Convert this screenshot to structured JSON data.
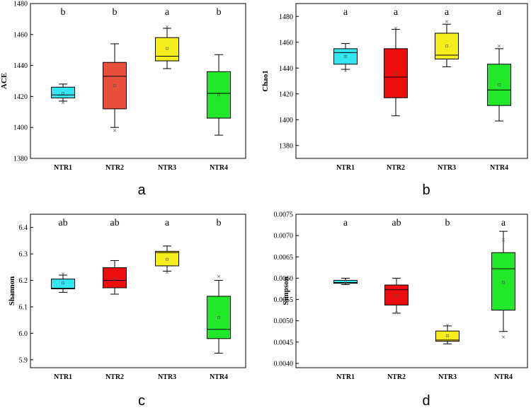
{
  "chart_data": [
    {
      "type": "box",
      "panel_label": "a",
      "ylabel": "ACE",
      "xlabel": "",
      "ylim": [
        1380,
        1480
      ],
      "yticks": [
        "1380",
        "1400",
        "1420",
        "1440",
        "1460",
        "1480"
      ],
      "categories": [
        "NTR1",
        "NTR2",
        "NTR3",
        "NTR4"
      ],
      "colors": [
        "#33e6f2",
        "#e8503c",
        "#f5ee1c",
        "#22e82a"
      ],
      "significance": [
        "b",
        "b",
        "a",
        "b"
      ],
      "boxes": [
        {
          "whisker_low": 1417,
          "q1": 1419,
          "median": 1421,
          "q3": 1426,
          "whisker_high": 1428,
          "mean": 1422,
          "outliers": [
            1416
          ]
        },
        {
          "whisker_low": 1400,
          "q1": 1412,
          "median": 1433,
          "q3": 1442,
          "whisker_high": 1454,
          "mean": 1427,
          "outliers": [
            1398
          ]
        },
        {
          "whisker_low": 1438,
          "q1": 1443,
          "median": 1446,
          "q3": 1458,
          "whisker_high": 1464,
          "mean": 1451,
          "outliers": [
            1465
          ]
        },
        {
          "whisker_low": 1395,
          "q1": 1406,
          "median": 1422,
          "q3": 1436,
          "whisker_high": 1447,
          "mean": 1421,
          "outliers": []
        }
      ]
    },
    {
      "type": "box",
      "panel_label": "b",
      "ylabel": "Chao1",
      "xlabel": "",
      "ylim": [
        1370,
        1490
      ],
      "yticks": [
        "1380",
        "1400",
        "1420",
        "1440",
        "1460",
        "1480"
      ],
      "categories": [
        "NTR1",
        "NTR2",
        "NTR3",
        "NTR4"
      ],
      "colors": [
        "#33e6f2",
        "#ee0d0d",
        "#f5ee1c",
        "#22e82a"
      ],
      "significance": [
        "a",
        "a",
        "a",
        "a"
      ],
      "boxes": [
        {
          "whisker_low": 1439,
          "q1": 1443,
          "median": 1452,
          "q3": 1455,
          "whisker_high": 1459,
          "mean": 1449,
          "outliers": [
            1438
          ]
        },
        {
          "whisker_low": 1403,
          "q1": 1417,
          "median": 1433,
          "q3": 1455,
          "whisker_high": 1470,
          "mean": 1436,
          "outliers": [
            1471
          ]
        },
        {
          "whisker_low": 1441,
          "q1": 1447,
          "median": 1450,
          "q3": 1467,
          "whisker_high": 1474,
          "mean": 1457,
          "outliers": [
            1476
          ]
        },
        {
          "whisker_low": 1399,
          "q1": 1411,
          "median": 1423,
          "q3": 1443,
          "whisker_high": 1455,
          "mean": 1427,
          "outliers": [
            1457
          ]
        }
      ]
    },
    {
      "type": "box",
      "panel_label": "c",
      "ylabel": "Shannon",
      "xlabel": "",
      "ylim": [
        5.87,
        6.45
      ],
      "yticks": [
        "5.9",
        "6.0",
        "6.1",
        "6.2",
        "6.3",
        "6.4"
      ],
      "categories": [
        "NTR1",
        "NTR2",
        "NTR3",
        "NTR4"
      ],
      "colors": [
        "#33e6f2",
        "#ee0d0d",
        "#f5ee1c",
        "#22e82a"
      ],
      "significance": [
        "ab",
        "ab",
        "a",
        "b"
      ],
      "boxes": [
        {
          "whisker_low": 6.155,
          "q1": 6.168,
          "median": 6.17,
          "q3": 6.205,
          "whisker_high": 6.22,
          "mean": 6.19,
          "outliers": [
            6.225
          ]
        },
        {
          "whisker_low": 6.148,
          "q1": 6.172,
          "median": 6.2,
          "q3": 6.248,
          "whisker_high": 6.275,
          "mean": 6.205,
          "outliers": []
        },
        {
          "whisker_low": 6.235,
          "q1": 6.255,
          "median": 6.305,
          "q3": 6.31,
          "whisker_high": 6.33,
          "mean": 6.28,
          "outliers": [
            6.23
          ]
        },
        {
          "whisker_low": 5.925,
          "q1": 5.98,
          "median": 6.015,
          "q3": 6.14,
          "whisker_high": 6.2,
          "mean": 6.06,
          "outliers": [
            6.215
          ]
        }
      ]
    },
    {
      "type": "box",
      "panel_label": "d",
      "ylabel": "Simpson",
      "xlabel": "",
      "ylim": [
        0.0039,
        0.0075
      ],
      "yticks": [
        "0.0040",
        "0.0045",
        "0.0050",
        "0.0055",
        "0.0060",
        "0.0065",
        "0.0070",
        "0.0075"
      ],
      "categories": [
        "NTR1",
        "NTR2",
        "NTR3",
        "NTR4"
      ],
      "colors": [
        "#33e6f2",
        "#ee0d0d",
        "#f5ee1c",
        "#22e82a"
      ],
      "significance": [
        "a",
        "ab",
        "b",
        "a"
      ],
      "boxes": [
        {
          "whisker_low": 0.00585,
          "q1": 0.00588,
          "median": 0.0059,
          "q3": 0.00595,
          "whisker_high": 0.006,
          "mean": 0.00592,
          "outliers": []
        },
        {
          "whisker_low": 0.00518,
          "q1": 0.00537,
          "median": 0.00573,
          "q3": 0.00584,
          "whisker_high": 0.006,
          "mean": 0.0056,
          "outliers": [
            0.00519
          ]
        },
        {
          "whisker_low": 0.00446,
          "q1": 0.00452,
          "median": 0.00455,
          "q3": 0.00476,
          "whisker_high": 0.00488,
          "mean": 0.00465,
          "outliers": [
            0.0049
          ]
        },
        {
          "whisker_low": 0.00475,
          "q1": 0.00525,
          "median": 0.00622,
          "q3": 0.0066,
          "whisker_high": 0.0071,
          "mean": 0.0059,
          "outliers": [
            0.00462,
            0.0069
          ]
        }
      ]
    }
  ]
}
